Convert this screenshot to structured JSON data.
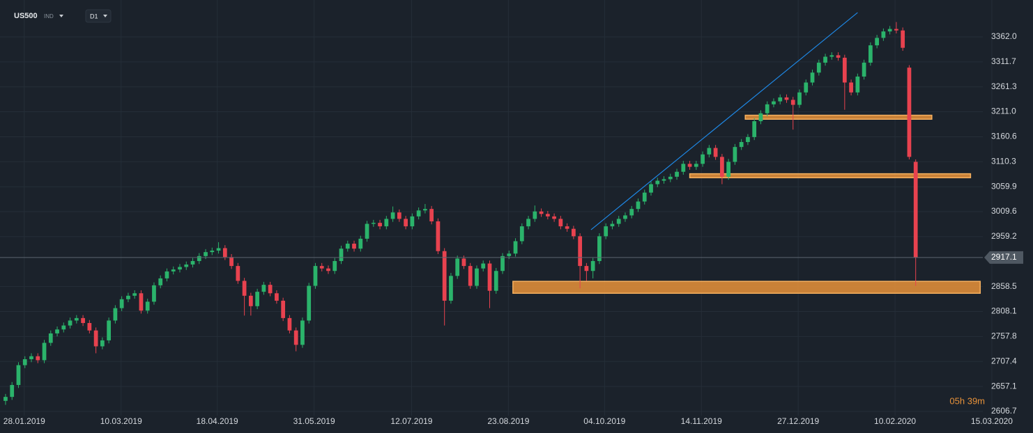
{
  "chart_data": {
    "type": "candlestick",
    "title": "US500",
    "instrument_type": "IND",
    "timeframe": "D1",
    "timer": "05h 39m",
    "up_color": "#2bb36b",
    "down_color": "#e8424f",
    "grid": true,
    "last_price": 2917.1,
    "xlim": [
      -0.86,
      151.4
    ],
    "ylim": [
      2598.3,
      3436.4
    ],
    "xticks": [
      {
        "value": 2.9,
        "label": "28.01.2019"
      },
      {
        "value": 17.9,
        "label": "10.03.2019"
      },
      {
        "value": 32.8,
        "label": "18.04.2019"
      },
      {
        "value": 47.8,
        "label": "31.05.2019"
      },
      {
        "value": 62.9,
        "label": "12.07.2019"
      },
      {
        "value": 77.9,
        "label": "23.08.2019"
      },
      {
        "value": 92.8,
        "label": "04.10.2019"
      },
      {
        "value": 107.8,
        "label": "14.11.2019"
      },
      {
        "value": 122.8,
        "label": "27.12.2019"
      },
      {
        "value": 137.8,
        "label": "10.02.2020"
      },
      {
        "value": 152.8,
        "label": "15.03.2020"
      }
    ],
    "yticks": [
      2606.7,
      2657.1,
      2707.4,
      2757.8,
      2808.1,
      2858.5,
      2959.2,
      3009.6,
      3059.9,
      3110.3,
      3160.6,
      {
        "value": 3211,
        "label": "3211.0"
      },
      3261.3,
      3311.7,
      {
        "value": 3362,
        "label": "3362.0"
      }
    ],
    "zones": [
      {
        "x": [
          78.6,
          151
        ],
        "y": [
          2845,
          2869
        ]
      },
      {
        "x": [
          114.6,
          143.5
        ],
        "y": [
          3196,
          3204
        ]
      },
      {
        "x": [
          106,
          149.5
        ],
        "y": [
          3078,
          3086
        ]
      }
    ],
    "zone_color": "#e8923a",
    "trendline": {
      "x": [
        90.7,
        132
      ],
      "y": [
        2973,
        3411
      ],
      "color": "#1e88e5"
    },
    "ohlc": [
      [
        2628,
        2642,
        2620,
        2636
      ],
      [
        2636,
        2666,
        2630,
        2660
      ],
      [
        2660,
        2706,
        2654,
        2700
      ],
      [
        2700,
        2718,
        2694,
        2712
      ],
      [
        2712,
        2724,
        2706,
        2718
      ],
      [
        2718,
        2724,
        2704,
        2710
      ],
      [
        2710,
        2751,
        2704,
        2745
      ],
      [
        2745,
        2770,
        2739,
        2764
      ],
      [
        2764,
        2778,
        2758,
        2772
      ],
      [
        2772,
        2786,
        2766,
        2780
      ],
      [
        2780,
        2796,
        2774,
        2790
      ],
      [
        2790,
        2801,
        2784,
        2795
      ],
      [
        2795,
        2801,
        2779,
        2785
      ],
      [
        2785,
        2791,
        2764,
        2770
      ],
      [
        2770,
        2776,
        2724,
        2738
      ],
      [
        2738,
        2756,
        2732,
        2750
      ],
      [
        2750,
        2796,
        2744,
        2790
      ],
      [
        2790,
        2821,
        2784,
        2815
      ],
      [
        2815,
        2839,
        2809,
        2833
      ],
      [
        2833,
        2846,
        2827,
        2840
      ],
      [
        2840,
        2851,
        2834,
        2845
      ],
      [
        2845,
        2851,
        2804,
        2810
      ],
      [
        2810,
        2834,
        2804,
        2828
      ],
      [
        2828,
        2867,
        2822,
        2861
      ],
      [
        2861,
        2881,
        2855,
        2875
      ],
      [
        2875,
        2895,
        2869,
        2889
      ],
      [
        2889,
        2899,
        2883,
        2893
      ],
      [
        2893,
        2904,
        2887,
        2898
      ],
      [
        2898,
        2909,
        2892,
        2903
      ],
      [
        2903,
        2916,
        2897,
        2910
      ],
      [
        2910,
        2926,
        2904,
        2920
      ],
      [
        2920,
        2934,
        2914,
        2928
      ],
      [
        2928,
        2937,
        2922,
        2931
      ],
      [
        2931,
        2948,
        2925,
        2936
      ],
      [
        2936,
        2942,
        2912,
        2918
      ],
      [
        2918,
        2924,
        2894,
        2900
      ],
      [
        2900,
        2906,
        2864,
        2870
      ],
      [
        2870,
        2876,
        2800,
        2840
      ],
      [
        2840,
        2846,
        2800,
        2819
      ],
      [
        2819,
        2854,
        2813,
        2848
      ],
      [
        2848,
        2868,
        2842,
        2862
      ],
      [
        2862,
        2868,
        2839,
        2845
      ],
      [
        2845,
        2851,
        2824,
        2830
      ],
      [
        2830,
        2836,
        2789,
        2795
      ],
      [
        2795,
        2801,
        2764,
        2770
      ],
      [
        2770,
        2776,
        2728,
        2741
      ],
      [
        2741,
        2796,
        2735,
        2790
      ],
      [
        2790,
        2866,
        2784,
        2860
      ],
      [
        2860,
        2906,
        2854,
        2900
      ],
      [
        2900,
        2906,
        2889,
        2895
      ],
      [
        2895,
        2901,
        2884,
        2890
      ],
      [
        2890,
        2916,
        2884,
        2910
      ],
      [
        2910,
        2941,
        2904,
        2935
      ],
      [
        2935,
        2951,
        2929,
        2945
      ],
      [
        2945,
        2951,
        2929,
        2935
      ],
      [
        2935,
        2961,
        2929,
        2955
      ],
      [
        2955,
        2991,
        2949,
        2985
      ],
      [
        2985,
        2993,
        2979,
        2987
      ],
      [
        2987,
        2993,
        2974,
        2980
      ],
      [
        2980,
        3001,
        2974,
        2995
      ],
      [
        2995,
        3020,
        2989,
        3008
      ],
      [
        3008,
        3014,
        2989,
        2995
      ],
      [
        2995,
        3001,
        2974,
        2980
      ],
      [
        2980,
        3006,
        2974,
        3000
      ],
      [
        3000,
        3018,
        2994,
        3012
      ],
      [
        3012,
        3025,
        3006,
        3015
      ],
      [
        3015,
        3021,
        2984,
        2990
      ],
      [
        2990,
        2996,
        2924,
        2930
      ],
      [
        2930,
        2936,
        2780,
        2830
      ],
      [
        2830,
        2886,
        2824,
        2880
      ],
      [
        2880,
        2921,
        2874,
        2915
      ],
      [
        2915,
        2921,
        2894,
        2900
      ],
      [
        2900,
        2906,
        2854,
        2860
      ],
      [
        2860,
        2901,
        2854,
        2895
      ],
      [
        2895,
        2911,
        2889,
        2905
      ],
      [
        2905,
        2911,
        2815,
        2850
      ],
      [
        2850,
        2896,
        2844,
        2890
      ],
      [
        2890,
        2926,
        2884,
        2920
      ],
      [
        2920,
        2931,
        2914,
        2925
      ],
      [
        2925,
        2956,
        2919,
        2950
      ],
      [
        2950,
        2986,
        2944,
        2980
      ],
      [
        2980,
        3001,
        2974,
        2995
      ],
      [
        2995,
        3022,
        2989,
        3010
      ],
      [
        3010,
        3016,
        2999,
        3005
      ],
      [
        3005,
        3011,
        2994,
        3000
      ],
      [
        3000,
        3006,
        2989,
        2995
      ],
      [
        2995,
        3001,
        2974,
        2980
      ],
      [
        2980,
        2986,
        2969,
        2975
      ],
      [
        2975,
        2981,
        2954,
        2960
      ],
      [
        2960,
        2966,
        2855,
        2900
      ],
      [
        2900,
        2906,
        2870,
        2890
      ],
      [
        2890,
        2916,
        2875,
        2910
      ],
      [
        2910,
        2966,
        2904,
        2960
      ],
      [
        2960,
        2986,
        2954,
        2980
      ],
      [
        2980,
        2991,
        2974,
        2985
      ],
      [
        2985,
        3001,
        2979,
        2995
      ],
      [
        2995,
        3008,
        2989,
        3002
      ],
      [
        3002,
        3021,
        2996,
        3015
      ],
      [
        3015,
        3036,
        3009,
        3030
      ],
      [
        3030,
        3054,
        3024,
        3048
      ],
      [
        3048,
        3071,
        3042,
        3065
      ],
      [
        3065,
        3078,
        3059,
        3072
      ],
      [
        3072,
        3081,
        3066,
        3075
      ],
      [
        3075,
        3086,
        3069,
        3080
      ],
      [
        3080,
        3096,
        3074,
        3090
      ],
      [
        3090,
        3112,
        3084,
        3106
      ],
      [
        3106,
        3112,
        3094,
        3100
      ],
      [
        3100,
        3112,
        3094,
        3106
      ],
      [
        3106,
        3131,
        3100,
        3125
      ],
      [
        3125,
        3144,
        3119,
        3138
      ],
      [
        3138,
        3144,
        3114,
        3120
      ],
      [
        3120,
        3126,
        3065,
        3080
      ],
      [
        3080,
        3116,
        3074,
        3110
      ],
      [
        3110,
        3146,
        3104,
        3140
      ],
      [
        3140,
        3156,
        3134,
        3150
      ],
      [
        3150,
        3166,
        3144,
        3160
      ],
      [
        3160,
        3198,
        3154,
        3192
      ],
      [
        3192,
        3214,
        3186,
        3208
      ],
      [
        3208,
        3232,
        3202,
        3226
      ],
      [
        3226,
        3238,
        3220,
        3232
      ],
      [
        3232,
        3246,
        3226,
        3240
      ],
      [
        3240,
        3246,
        3229,
        3235
      ],
      [
        3235,
        3241,
        3175,
        3225
      ],
      [
        3225,
        3256,
        3219,
        3250
      ],
      [
        3250,
        3276,
        3244,
        3270
      ],
      [
        3270,
        3296,
        3264,
        3290
      ],
      [
        3290,
        3316,
        3284,
        3310
      ],
      [
        3310,
        3328,
        3304,
        3322
      ],
      [
        3322,
        3331,
        3316,
        3325
      ],
      [
        3325,
        3331,
        3314,
        3320
      ],
      [
        3320,
        3326,
        3215,
        3270
      ],
      [
        3270,
        3276,
        3244,
        3250
      ],
      [
        3250,
        3288,
        3244,
        3282
      ],
      [
        3282,
        3316,
        3276,
        3310
      ],
      [
        3310,
        3351,
        3304,
        3345
      ],
      [
        3345,
        3366,
        3339,
        3360
      ],
      [
        3360,
        3379,
        3354,
        3373
      ],
      [
        3373,
        3384,
        3367,
        3378
      ],
      [
        3378,
        3392,
        3369,
        3375
      ],
      [
        3375,
        3381,
        3334,
        3340
      ],
      [
        3300,
        3305,
        3115,
        3120
      ],
      [
        3110,
        3115,
        2860,
        2917
      ]
    ]
  }
}
